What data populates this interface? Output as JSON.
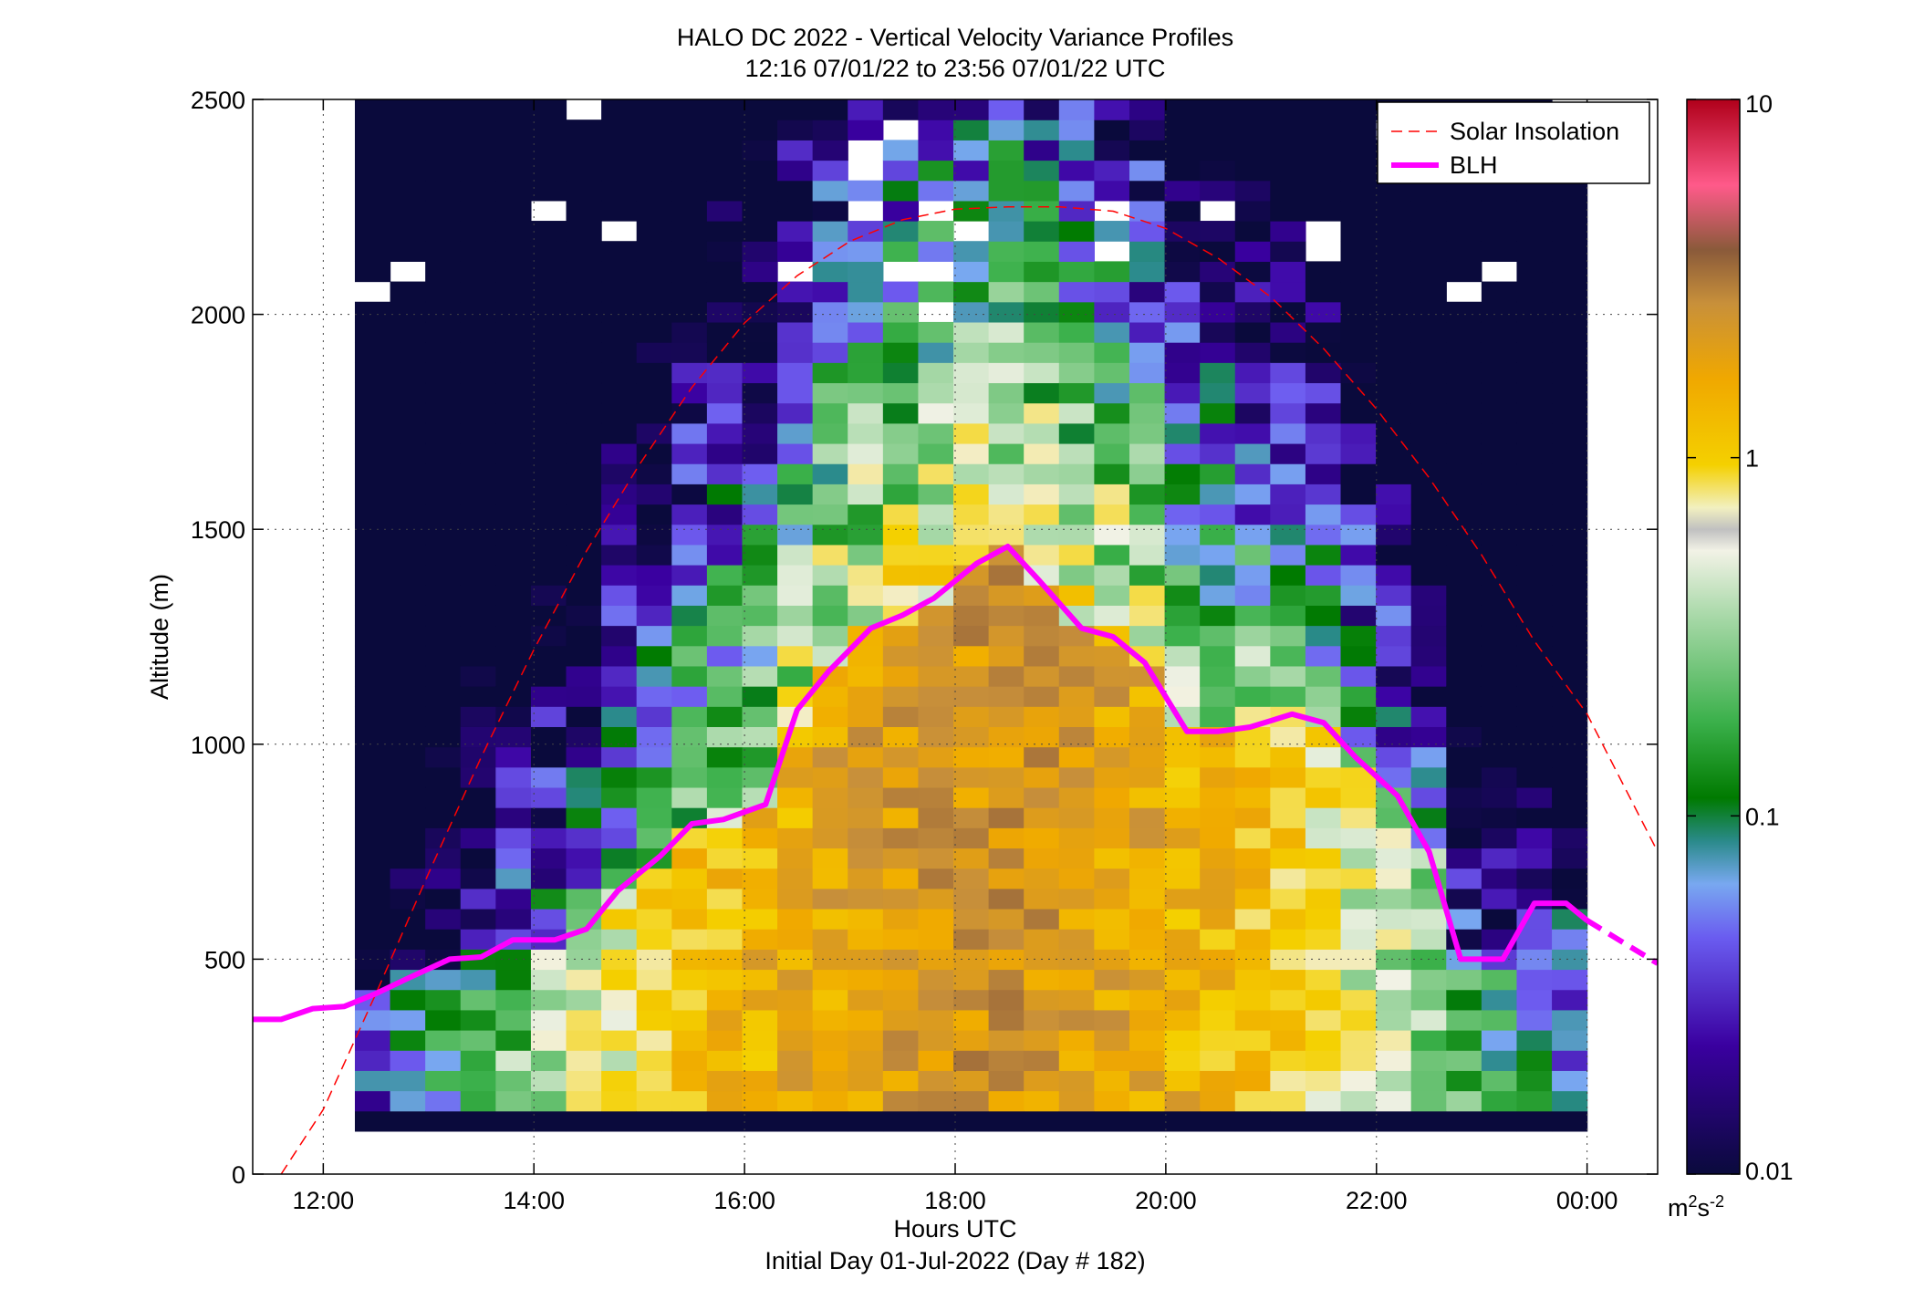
{
  "chart_data": {
    "type": "heatmap",
    "title": "HALO DC 2022 - Vertical Velocity Variance Profiles",
    "subtitle": "12:16 07/01/22 to 23:56 07/01/22  UTC",
    "xlabel": "Hours UTC",
    "xlabel2": "Initial Day 01-Jul-2022 (Day # 182)",
    "ylabel": "Altitude (m)",
    "xlim": [
      11.33,
      24.67
    ],
    "ylim": [
      0,
      2500
    ],
    "x_ticks": [
      12,
      14,
      16,
      18,
      20,
      22,
      24
    ],
    "x_tick_labels": [
      "12:00",
      "14:00",
      "16:00",
      "18:00",
      "20:00",
      "22:00",
      "00:00"
    ],
    "y_ticks": [
      0,
      500,
      1000,
      1500,
      2000,
      2500
    ],
    "y_tick_labels": [
      "0",
      "500",
      "1000",
      "1500",
      "2000",
      "2500"
    ],
    "grid": true,
    "color_scale": "log",
    "colorbar_limits": [
      0.01,
      10
    ],
    "colorbar_ticks": [
      0.01,
      0.1,
      1,
      10
    ],
    "colorbar_tick_labels": [
      "0.01",
      "0.1",
      "1",
      "10"
    ],
    "colorbar_unit_base": "m",
    "colorbar_unit_exp1": "2",
    "colorbar_unit_mid": "s",
    "colorbar_unit_exp2": "-2",
    "heatmap_x_start": 12.3,
    "heatmap_x_end": 24.0,
    "heatmap_y_start": 100,
    "heatmap_y_end": 2500,
    "legend": {
      "placement": "top-right",
      "entries": [
        {
          "label": "Solar Insolation",
          "style": "dashed",
          "color": "#ff0000"
        },
        {
          "label": "BLH",
          "style": "solid",
          "color": "#ff00ff"
        }
      ]
    },
    "series": [
      {
        "name": "BLH",
        "x": [
          11.33,
          11.6,
          11.9,
          12.2,
          12.5,
          12.8,
          13.2,
          13.5,
          13.8,
          14.2,
          14.5,
          14.8,
          15.2,
          15.5,
          15.8,
          16.2,
          16.5,
          16.8,
          17.2,
          17.5,
          17.8,
          18.2,
          18.5,
          18.8,
          19.2,
          19.5,
          19.8,
          20.2,
          20.5,
          20.8,
          21.2,
          21.5,
          21.8,
          22.2,
          22.5,
          22.8,
          23.2,
          23.5,
          23.8,
          24.0
        ]
      },
      {
        "name": "BLH",
        "y": [
          360,
          360,
          385,
          390,
          420,
          455,
          500,
          505,
          545,
          545,
          570,
          660,
          740,
          815,
          825,
          860,
          1080,
          1170,
          1270,
          1300,
          1340,
          1420,
          1460,
          1380,
          1270,
          1250,
          1190,
          1030,
          1030,
          1040,
          1070,
          1050,
          970,
          880,
          750,
          500,
          500,
          630,
          630,
          590
        ]
      },
      {
        "name": "Solar Insolation",
        "x": [
          11.6,
          12.0,
          12.5,
          13.0,
          13.5,
          14.0,
          14.5,
          15.0,
          15.5,
          16.0,
          16.5,
          17.0,
          17.5,
          18.0,
          18.5,
          19.0,
          19.5,
          20.0,
          20.5,
          21.0,
          21.5,
          22.0,
          22.5,
          23.0,
          23.5,
          24.0,
          24.67
        ],
        "y": [
          0,
          150,
          420,
          700,
          970,
          1220,
          1450,
          1650,
          1830,
          1980,
          2090,
          2170,
          2220,
          2245,
          2250,
          2250,
          2240,
          2200,
          2130,
          2040,
          1920,
          1780,
          1620,
          1440,
          1240,
          1070,
          750
        ]
      }
    ]
  }
}
